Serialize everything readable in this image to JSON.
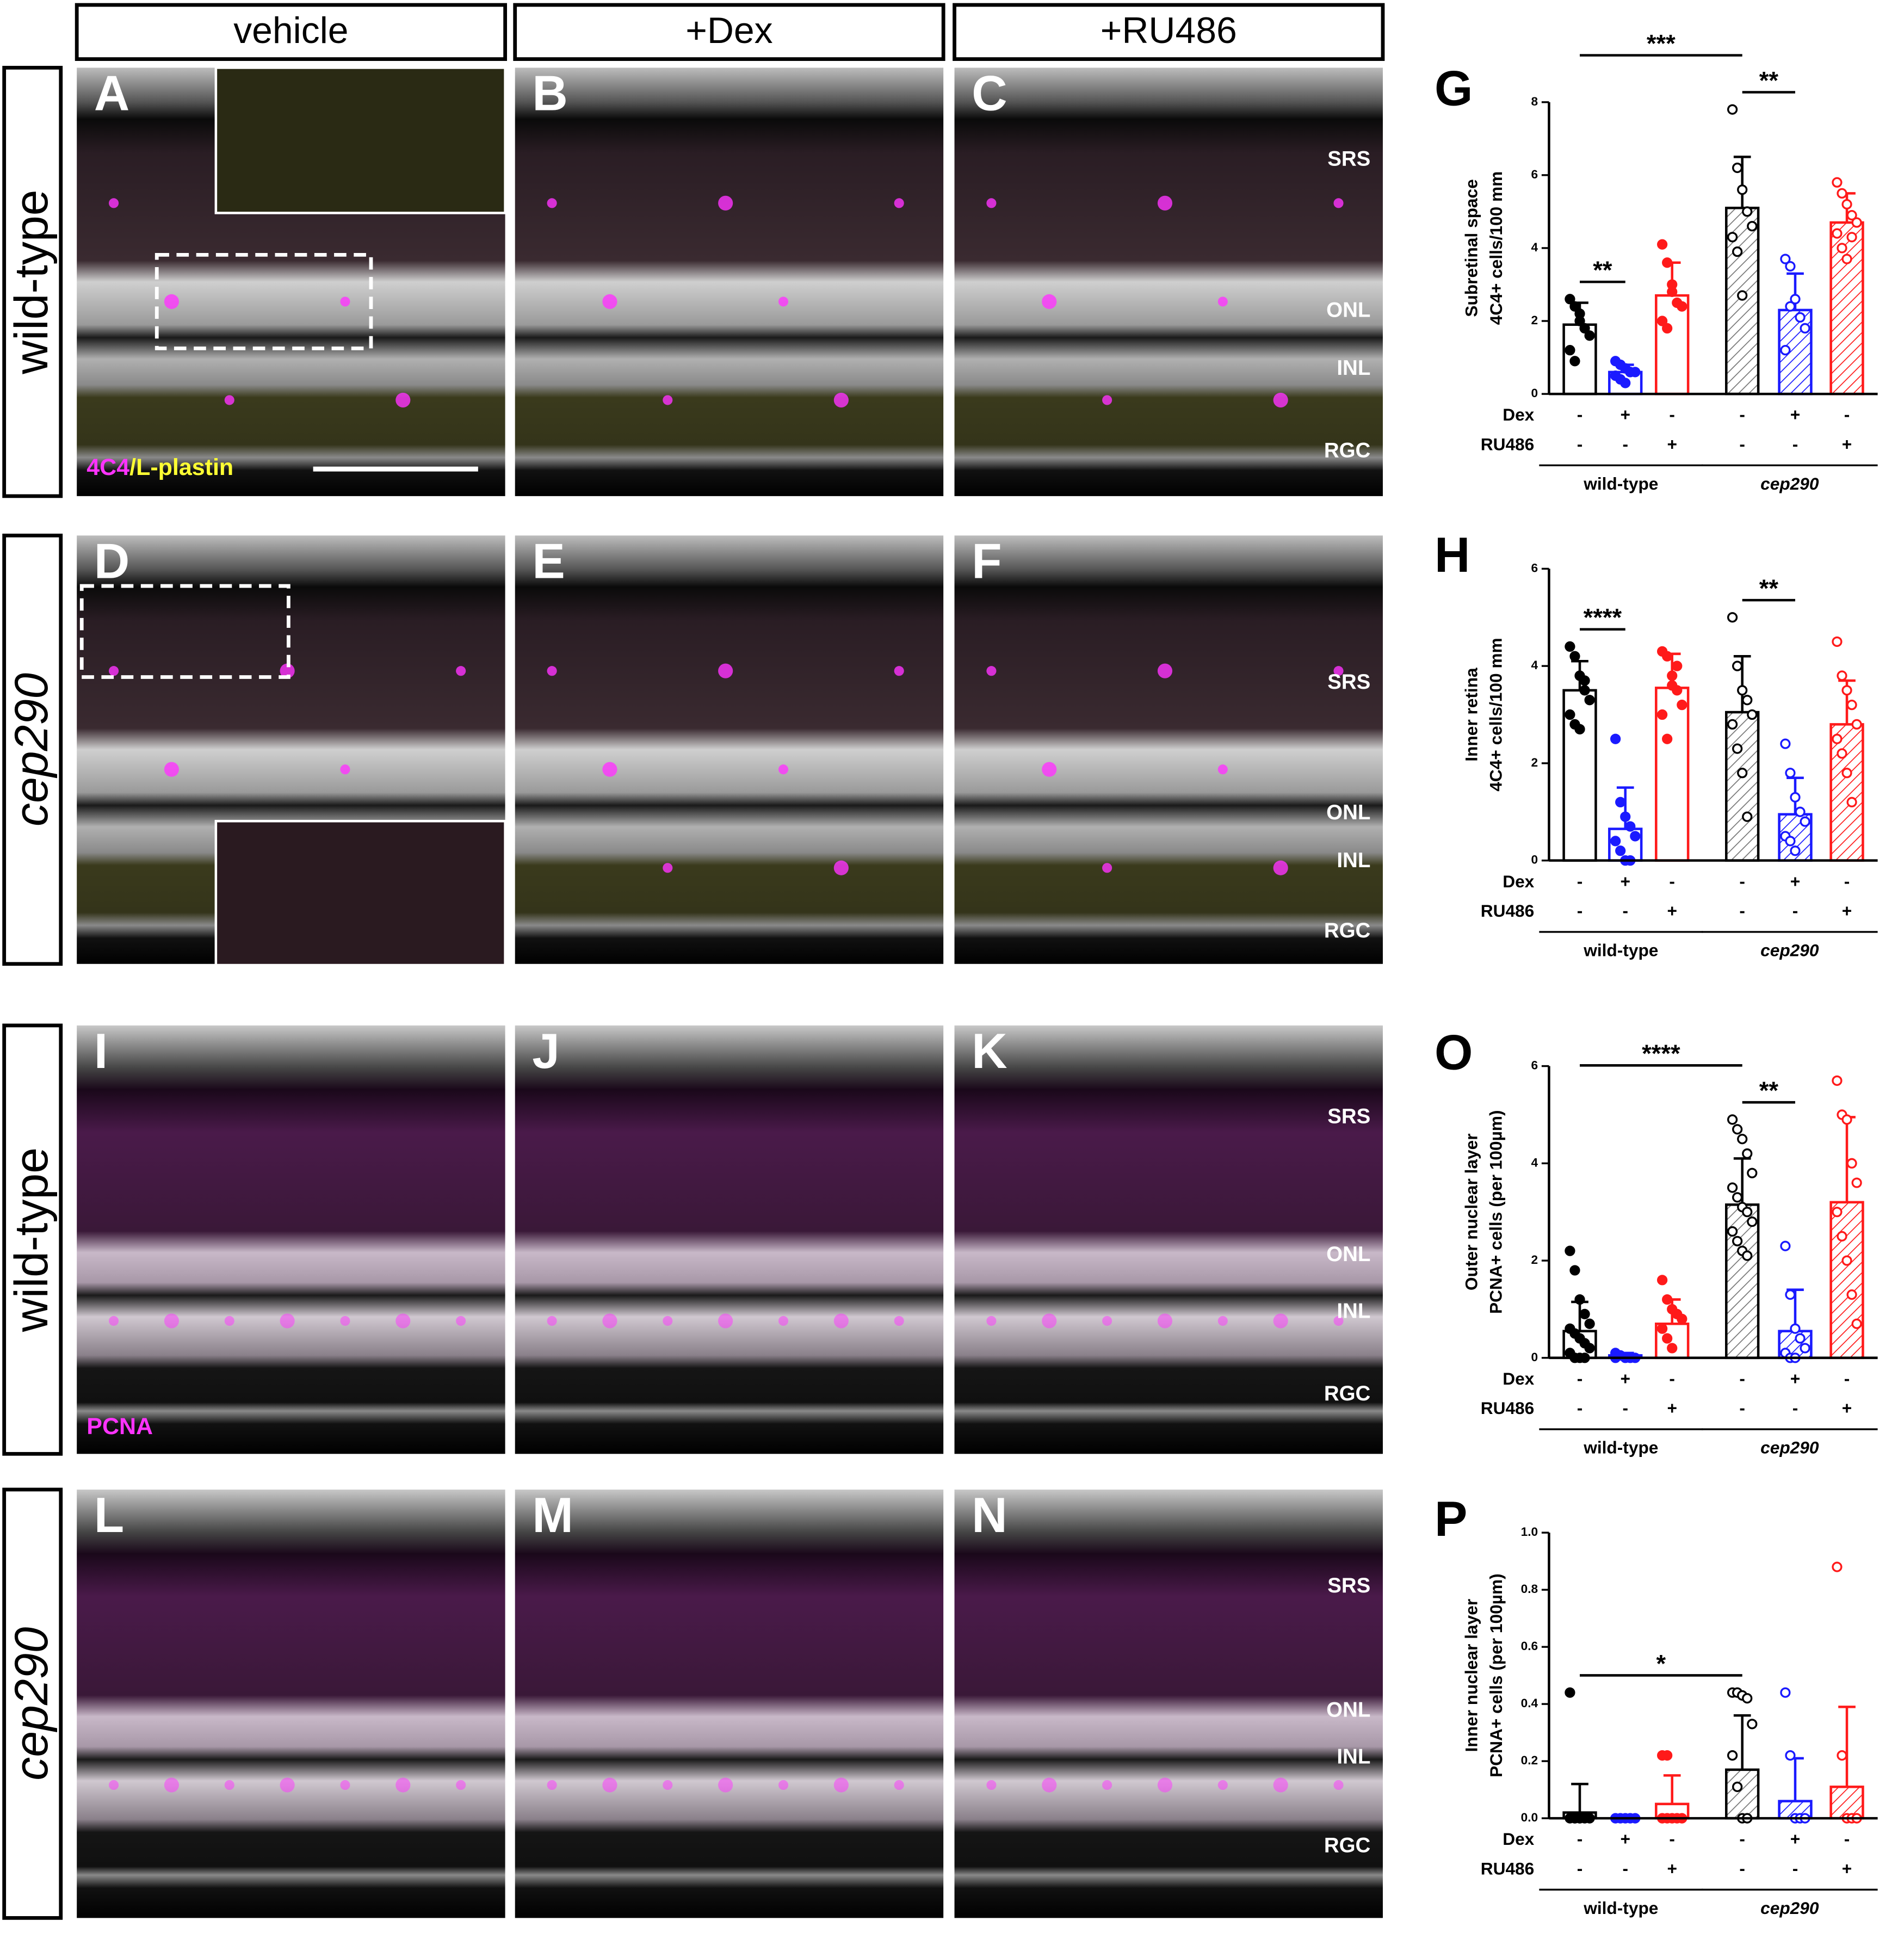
{
  "columns": [
    "vehicle",
    "+Dex",
    "+RU486"
  ],
  "rows": [
    "wild-type",
    "cep290",
    "wild-type",
    "cep290"
  ],
  "panels": [
    [
      "A",
      "B",
      "C"
    ],
    [
      "D",
      "E",
      "F"
    ],
    [
      "I",
      "J",
      "K"
    ],
    [
      "L",
      "M",
      "N"
    ]
  ],
  "layer_labels": [
    "SRS",
    "ONL",
    "INL",
    "RGC"
  ],
  "stain_top": {
    "marker": "4C4",
    "rest": "/L-plastin"
  },
  "stain_bottom": "PCNA",
  "chart_data": [
    {
      "type": "bar",
      "title": "G",
      "ylabel": [
        "Subretinal space",
        "4C4+ cells/100 mm"
      ],
      "values": [
        1.9,
        0.6,
        2.7,
        5.1,
        2.3,
        4.7
      ],
      "errors": [
        0.6,
        0.2,
        0.9,
        1.4,
        1.0,
        0.8
      ],
      "points": [
        [
          2.6,
          2.4,
          2.0,
          1.8,
          1.6,
          1.2,
          0.9,
          2.2
        ],
        [
          0.9,
          0.8,
          0.7,
          0.6,
          0.6,
          0.5,
          0.4,
          0.3,
          0.6
        ],
        [
          4.1,
          3.6,
          3.0,
          2.5,
          2.4,
          2.0,
          1.8,
          2.8
        ],
        [
          7.8,
          6.2,
          5.6,
          5.0,
          4.6,
          4.3,
          3.9,
          2.7
        ],
        [
          3.7,
          3.5,
          2.6,
          2.1,
          1.8,
          1.2,
          2.4
        ],
        [
          5.8,
          5.5,
          5.2,
          4.9,
          4.7,
          4.4,
          4.0,
          3.7,
          4.3
        ]
      ],
      "colors": [
        "#000000",
        "#1a1aff",
        "#ff1a1a",
        "#000000",
        "#1a1aff",
        "#ff1a1a"
      ],
      "hatched": [
        false,
        false,
        false,
        true,
        true,
        true
      ],
      "ylim": [
        0,
        8
      ],
      "yticks": [
        0,
        2,
        4,
        6,
        8
      ],
      "conditions": [
        {
          "name": "Dex",
          "marks": [
            "-",
            "+",
            "-",
            "-",
            "+",
            "-"
          ]
        },
        {
          "name": "RU486",
          "marks": [
            "-",
            "-",
            "+",
            "-",
            "-",
            "+"
          ]
        }
      ],
      "groups": [
        "wild-type",
        "cep290"
      ],
      "annotations": [
        {
          "text": "**",
          "from": 0,
          "to": 1
        },
        {
          "text": "**",
          "from": 3,
          "to": 4
        },
        {
          "text": "***",
          "from": 0,
          "to": 3
        }
      ]
    },
    {
      "type": "bar",
      "title": "H",
      "ylabel": [
        "Inner retina",
        "4C4+ cells/100 mm"
      ],
      "values": [
        3.5,
        0.65,
        3.55,
        3.05,
        0.95,
        2.8
      ],
      "errors": [
        0.6,
        0.85,
        0.7,
        1.15,
        0.75,
        0.9
      ],
      "points": [
        [
          4.4,
          4.2,
          3.8,
          3.5,
          3.3,
          3.0,
          2.8,
          2.7,
          3.7
        ],
        [
          2.5,
          1.2,
          0.9,
          0.7,
          0.5,
          0.4,
          0.2,
          0.0,
          0.0
        ],
        [
          4.3,
          4.2,
          3.8,
          3.5,
          3.2,
          3.0,
          2.5,
          3.6,
          4.0
        ],
        [
          5.0,
          4.0,
          3.5,
          3.3,
          3.0,
          2.8,
          2.3,
          1.8,
          0.9
        ],
        [
          2.4,
          1.8,
          1.3,
          1.0,
          0.8,
          0.5,
          0.4,
          0.2
        ],
        [
          4.5,
          3.8,
          3.5,
          3.2,
          2.8,
          2.5,
          2.2,
          1.8,
          1.2
        ]
      ],
      "colors": [
        "#000000",
        "#1a1aff",
        "#ff1a1a",
        "#000000",
        "#1a1aff",
        "#ff1a1a"
      ],
      "hatched": [
        false,
        false,
        false,
        true,
        true,
        true
      ],
      "ylim": [
        0,
        6
      ],
      "yticks": [
        0,
        2,
        4,
        6
      ],
      "conditions": [
        {
          "name": "Dex",
          "marks": [
            "-",
            "+",
            "-",
            "-",
            "+",
            "-"
          ]
        },
        {
          "name": "RU486",
          "marks": [
            "-",
            "-",
            "+",
            "-",
            "-",
            "+"
          ]
        }
      ],
      "groups": [
        "wild-type",
        "cep290"
      ],
      "annotations": [
        {
          "text": "****",
          "from": 0,
          "to": 1
        },
        {
          "text": "**",
          "from": 3,
          "to": 4
        }
      ]
    },
    {
      "type": "bar",
      "title": "O",
      "ylabel": [
        "Outer nuclear layer",
        "PCNA+ cells  (per 100µm)"
      ],
      "values": [
        0.55,
        0.05,
        0.7,
        3.15,
        0.55,
        3.2
      ],
      "errors": [
        0.6,
        0.05,
        0.5,
        0.95,
        0.85,
        1.75
      ],
      "points": [
        [
          2.2,
          1.8,
          1.2,
          0.9,
          0.7,
          0.6,
          0.5,
          0.4,
          0.3,
          0.2,
          0.1,
          0.0,
          0.0,
          0.0
        ],
        [
          0.1,
          0.05,
          0.0,
          0.0,
          0.0,
          0.0
        ],
        [
          1.6,
          1.2,
          1.0,
          0.9,
          0.8,
          0.6,
          0.4,
          0.2
        ],
        [
          4.9,
          4.7,
          4.5,
          4.2,
          3.8,
          3.5,
          3.3,
          3.1,
          3.0,
          2.8,
          2.6,
          2.4,
          2.2,
          2.1
        ],
        [
          2.3,
          1.3,
          0.6,
          0.4,
          0.2,
          0.1,
          0.0,
          0.0
        ],
        [
          5.7,
          5.0,
          4.9,
          4.0,
          3.6,
          3.0,
          2.5,
          2.0,
          1.3,
          0.7
        ]
      ],
      "colors": [
        "#000000",
        "#1a1aff",
        "#ff1a1a",
        "#000000",
        "#1a1aff",
        "#ff1a1a"
      ],
      "hatched": [
        false,
        false,
        false,
        true,
        true,
        true
      ],
      "ylim": [
        0,
        6
      ],
      "yticks": [
        0,
        2,
        4,
        6
      ],
      "conditions": [
        {
          "name": "Dex",
          "marks": [
            "-",
            "+",
            "-",
            "-",
            "+",
            "-"
          ]
        },
        {
          "name": "RU486",
          "marks": [
            "-",
            "-",
            "+",
            "-",
            "-",
            "+"
          ]
        }
      ],
      "groups": [
        "wild-type",
        "cep290"
      ],
      "annotations": [
        {
          "text": "**",
          "from": 3,
          "to": 4
        },
        {
          "text": "****",
          "from": 0,
          "to": 3
        }
      ]
    },
    {
      "type": "bar",
      "title": "P",
      "ylabel": [
        "Inner nuclear layer",
        "PCNA+ cells  (per 100µm)"
      ],
      "values": [
        0.02,
        0,
        0.05,
        0.17,
        0.06,
        0.11
      ],
      "errors": [
        0.1,
        0,
        0.1,
        0.19,
        0.15,
        0.28
      ],
      "points": [
        [
          0.44,
          0,
          0,
          0,
          0,
          0,
          0,
          0
        ],
        [
          0,
          0,
          0,
          0,
          0
        ],
        [
          0.22,
          0.22,
          0,
          0,
          0,
          0,
          0
        ],
        [
          0.44,
          0.44,
          0.43,
          0.42,
          0.33,
          0.22,
          0.11,
          0,
          0
        ],
        [
          0.44,
          0.22,
          0,
          0,
          0
        ],
        [
          0.88,
          0.22,
          0,
          0,
          0
        ]
      ],
      "colors": [
        "#000000",
        "#1a1aff",
        "#ff1a1a",
        "#000000",
        "#1a1aff",
        "#ff1a1a"
      ],
      "hatched": [
        false,
        false,
        false,
        true,
        true,
        true
      ],
      "ylim": [
        0,
        1.0
      ],
      "yticks": [
        {
          "value": 0,
          "label": "0.0"
        },
        0.2,
        0.4,
        0.6,
        0.8,
        {
          "value": 1.0,
          "label": "1.0"
        }
      ],
      "conditions": [
        {
          "name": "Dex",
          "marks": [
            "-",
            "+",
            "-",
            "-",
            "+",
            "-"
          ]
        },
        {
          "name": "RU486",
          "marks": [
            "-",
            "-",
            "+",
            "-",
            "-",
            "+"
          ]
        }
      ],
      "groups": [
        "wild-type",
        "cep290"
      ],
      "annotations": [
        {
          "text": "*",
          "from": 0,
          "to": 3
        }
      ]
    }
  ]
}
